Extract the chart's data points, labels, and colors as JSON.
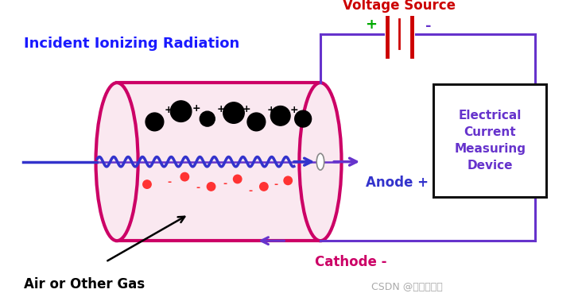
{
  "bg_color": "#ffffff",
  "cylinder_color": "#cc0066",
  "cylinder_lw": 3.0,
  "cylinder_fill": "#fae8f0",
  "anode_wire_color": "#6633cc",
  "beam_color": "#3333cc",
  "ion_pos_color": "#000000",
  "electron_color": "#ff3333",
  "circuit_color": "#6633cc",
  "voltage_color": "#cc0000",
  "label_radiation": "Incident Ionizing Radiation",
  "label_radiation_color": "#1a1aff",
  "label_anode": "Anode +",
  "label_anode_color": "#3333cc",
  "label_cathode": "Cathode -",
  "label_cathode_color": "#cc0066",
  "label_gas": "Air or Other Gas",
  "label_gas_color": "#000000",
  "label_voltage": "Voltage Source",
  "label_voltage_color": "#cc0000",
  "label_device": "Electrical\nCurrent\nMeasuring\nDevice",
  "label_device_color": "#6633cc",
  "label_watermark": "CSDN @小青菜哥哥",
  "label_watermark_color": "#aaaaaa",
  "plus_color": "#00aa00",
  "minus_color": "#6633cc"
}
